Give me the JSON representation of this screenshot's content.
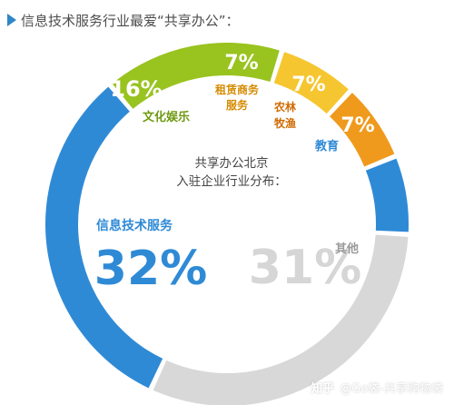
{
  "header": {
    "title": "信息技术服务行业最爱“共享办公”："
  },
  "center": {
    "line1": "共享办公北京",
    "line2": "入驻企业行业分布："
  },
  "watermark": {
    "brand": "知乎",
    "handle": "@Go袋-共享购物袋"
  },
  "chart_data": {
    "type": "pie",
    "title": "共享办公北京入驻企业行业分布：",
    "slices": [
      {
        "label": "文化娱乐",
        "value_label": "16%",
        "value": 16,
        "color": "#99c31f"
      },
      {
        "label": "租赁商务服务",
        "value_label": "7%",
        "value": 7,
        "color": "#f6c630"
      },
      {
        "label": "农林牧渔",
        "value_label": "7%",
        "value": 7,
        "color": "#ef9a1c"
      },
      {
        "label": "教育",
        "value_label": "7%",
        "value": 7,
        "color": "#2f8ad6"
      },
      {
        "label": "其他",
        "value_label": "31%",
        "value": 31,
        "color": "#d8d8d8"
      },
      {
        "label": "信息技术服务",
        "value_label": "32%",
        "value": 32,
        "color": "#2f8ad6"
      }
    ]
  }
}
